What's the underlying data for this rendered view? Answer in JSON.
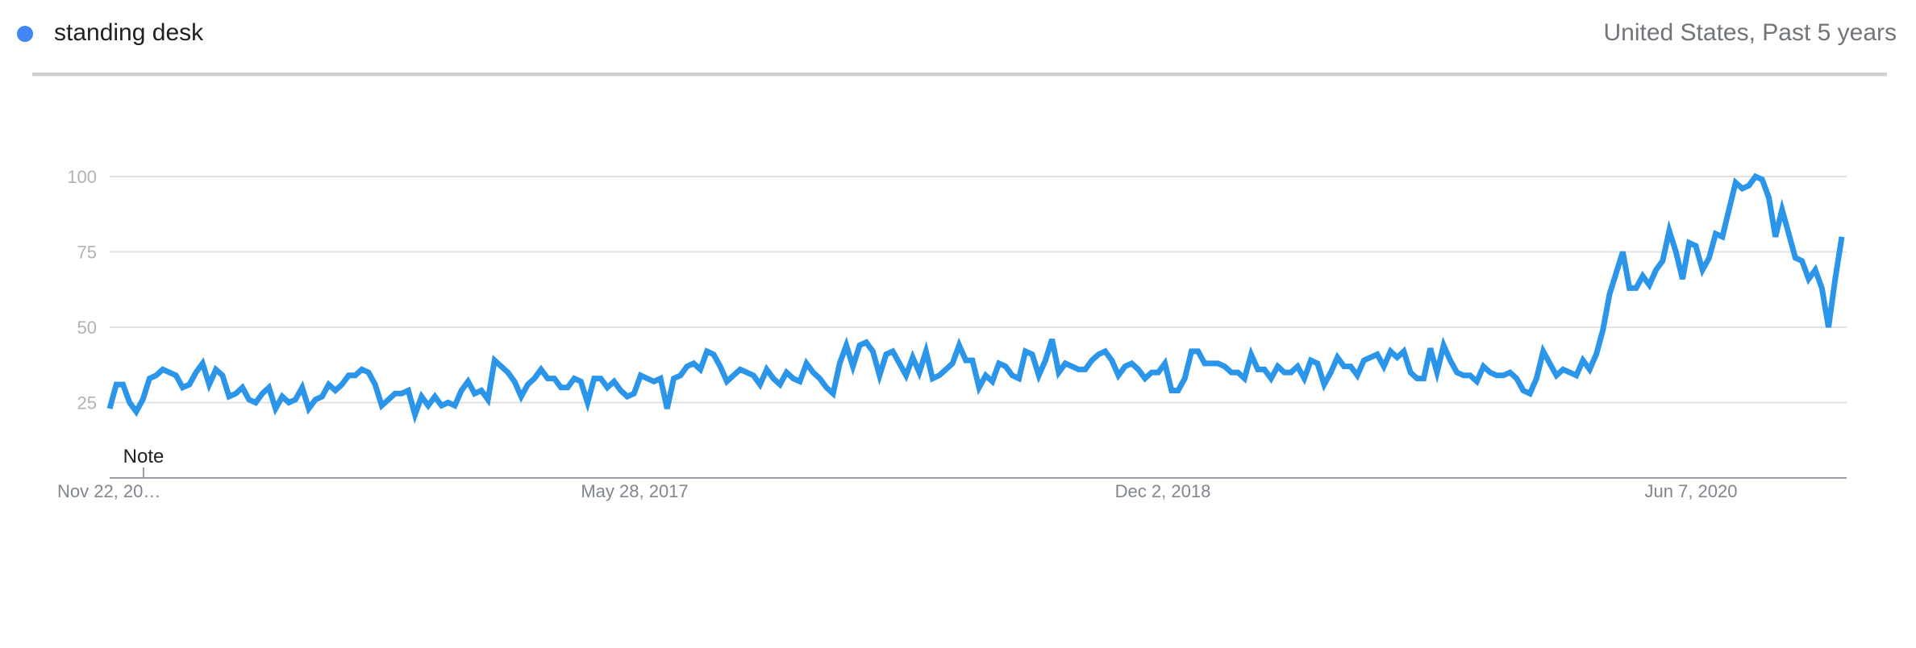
{
  "legend": {
    "term": "standing desk",
    "meta": "United States, Past 5 years",
    "color": "#4285f4"
  },
  "chart_data": {
    "type": "line",
    "title": "",
    "xlabel": "",
    "ylabel": "",
    "ylim": [
      0,
      100
    ],
    "y_ticks": [
      25,
      50,
      75,
      100
    ],
    "x_tick_labels": [
      "Nov 22, 20…",
      "May 28, 2017",
      "Dec 2, 2018",
      "Jun 7, 2020"
    ],
    "annotation": "Note",
    "grid": true,
    "line_color": "#2b95ea",
    "series": [
      {
        "name": "standing desk",
        "values": [
          23,
          31,
          31,
          25,
          22,
          26,
          33,
          34,
          36,
          35,
          34,
          30,
          31,
          35,
          38,
          31,
          36,
          34,
          27,
          28,
          30,
          26,
          25,
          28,
          30,
          23,
          27,
          25,
          26,
          30,
          23,
          26,
          27,
          31,
          29,
          31,
          34,
          34,
          36,
          35,
          31,
          24,
          26,
          28,
          28,
          29,
          21,
          27,
          24,
          27,
          24,
          25,
          24,
          29,
          32,
          28,
          29,
          26,
          39,
          37,
          35,
          32,
          27,
          31,
          33,
          36,
          33,
          33,
          30,
          30,
          33,
          32,
          25,
          33,
          33,
          30,
          32,
          29,
          27,
          28,
          34,
          33,
          32,
          33,
          23,
          33,
          34,
          37,
          38,
          36,
          42,
          41,
          37,
          32,
          34,
          36,
          35,
          34,
          31,
          36,
          33,
          31,
          35,
          33,
          32,
          38,
          35,
          33,
          30,
          28,
          38,
          44,
          37,
          44,
          45,
          42,
          34,
          41,
          42,
          38,
          34,
          40,
          35,
          42,
          33,
          34,
          36,
          38,
          44,
          39,
          39,
          30,
          34,
          32,
          38,
          37,
          34,
          33,
          42,
          41,
          34,
          39,
          46,
          35,
          38,
          37,
          36,
          36,
          39,
          41,
          42,
          39,
          34,
          37,
          38,
          36,
          33,
          35,
          35,
          38,
          29,
          29,
          33,
          42,
          42,
          38,
          38,
          38,
          37,
          35,
          35,
          33,
          41,
          36,
          36,
          33,
          37,
          35,
          35,
          37,
          33,
          39,
          38,
          31,
          35,
          40,
          37,
          37,
          34,
          39,
          40,
          41,
          37,
          42,
          40,
          42,
          35,
          33,
          33,
          43,
          35,
          44,
          39,
          35,
          34,
          34,
          32,
          37,
          35,
          34,
          34,
          35,
          33,
          29,
          28,
          33,
          42,
          38,
          34,
          36,
          35,
          34,
          39,
          36,
          41,
          49,
          61,
          68,
          75,
          63,
          63,
          67,
          64,
          69,
          72,
          82,
          75,
          66,
          78,
          77,
          69,
          73,
          81,
          80,
          89,
          98,
          96,
          97,
          100,
          99,
          93,
          80,
          89,
          81,
          73,
          72,
          66,
          69,
          63,
          50,
          66,
          80
        ]
      }
    ]
  }
}
